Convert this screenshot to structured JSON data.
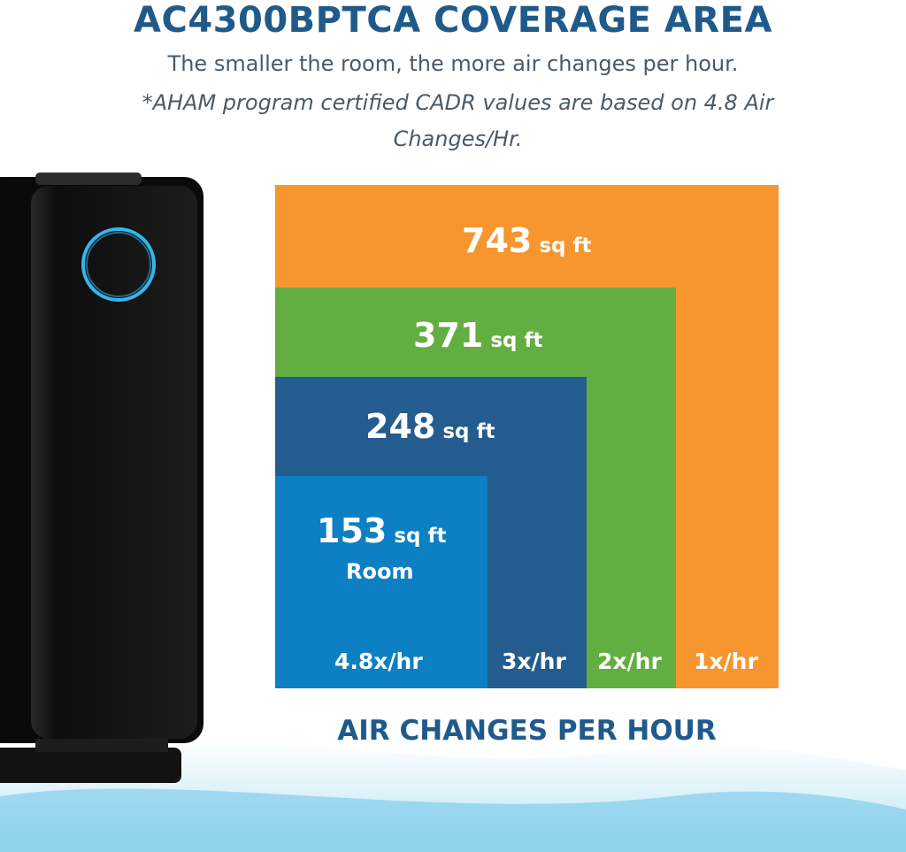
{
  "title": "AC4300BPTCA COVERAGE AREA",
  "subtitle": "The smaller the room, the more air changes per hour.",
  "note": "*AHAM program certified CADR values are based on 4.8 Air Changes/Hr.",
  "squares": [
    {
      "area_value": "743",
      "unit": "sq ft",
      "rate": "1x/hr",
      "color": "#f7962f"
    },
    {
      "area_value": "371",
      "unit": "sq ft",
      "rate": "2x/hr",
      "color": "#62ae41"
    },
    {
      "area_value": "248",
      "unit": "sq ft",
      "rate": "3x/hr",
      "color": "#245c8f"
    },
    {
      "area_value": "153",
      "unit": "sq ft",
      "rate": "4.8x/hr",
      "color": "#0c80c3",
      "room_label": "Room"
    }
  ],
  "axis_title": "AIR CHANGES PER HOUR",
  "colors": {
    "title": "#1f5a8a",
    "text": "#4a5a66",
    "device_body": "#151515",
    "device_ring": "#3ab4e6"
  },
  "image": {
    "device": "air-purifier-tower"
  }
}
